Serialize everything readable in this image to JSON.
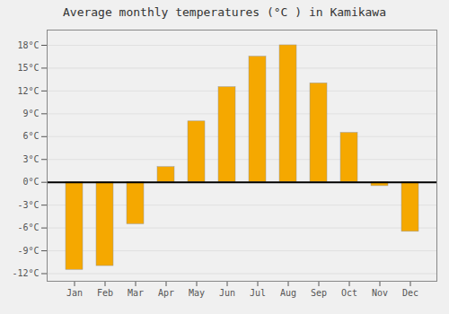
{
  "chart_data": {
    "type": "bar",
    "title": "Average monthly temperatures (°C ) in Kamikawa",
    "categories": [
      "Jan",
      "Feb",
      "Mar",
      "Apr",
      "May",
      "Jun",
      "Jul",
      "Aug",
      "Sep",
      "Oct",
      "Nov",
      "Dec"
    ],
    "values": [
      -11.5,
      -11.0,
      -5.5,
      2.0,
      8.0,
      12.5,
      16.5,
      18.0,
      13.0,
      6.5,
      -0.5,
      -6.5
    ],
    "color": "#F5A800",
    "ylim": [
      -13,
      20
    ],
    "yticks": [
      {
        "value": -12,
        "label": "-12°C"
      },
      {
        "value": -9,
        "label": "-9°C"
      },
      {
        "value": -6,
        "label": "-6°C"
      },
      {
        "value": -3,
        "label": "-3°C"
      },
      {
        "value": 0,
        "label": "0°C"
      },
      {
        "value": 3,
        "label": "3°C"
      },
      {
        "value": 6,
        "label": "6°C"
      },
      {
        "value": 9,
        "label": "9°C"
      },
      {
        "value": 12,
        "label": "12°C"
      },
      {
        "value": 15,
        "label": "15°C"
      },
      {
        "value": 18,
        "label": "18°C"
      }
    ],
    "grid": true
  }
}
